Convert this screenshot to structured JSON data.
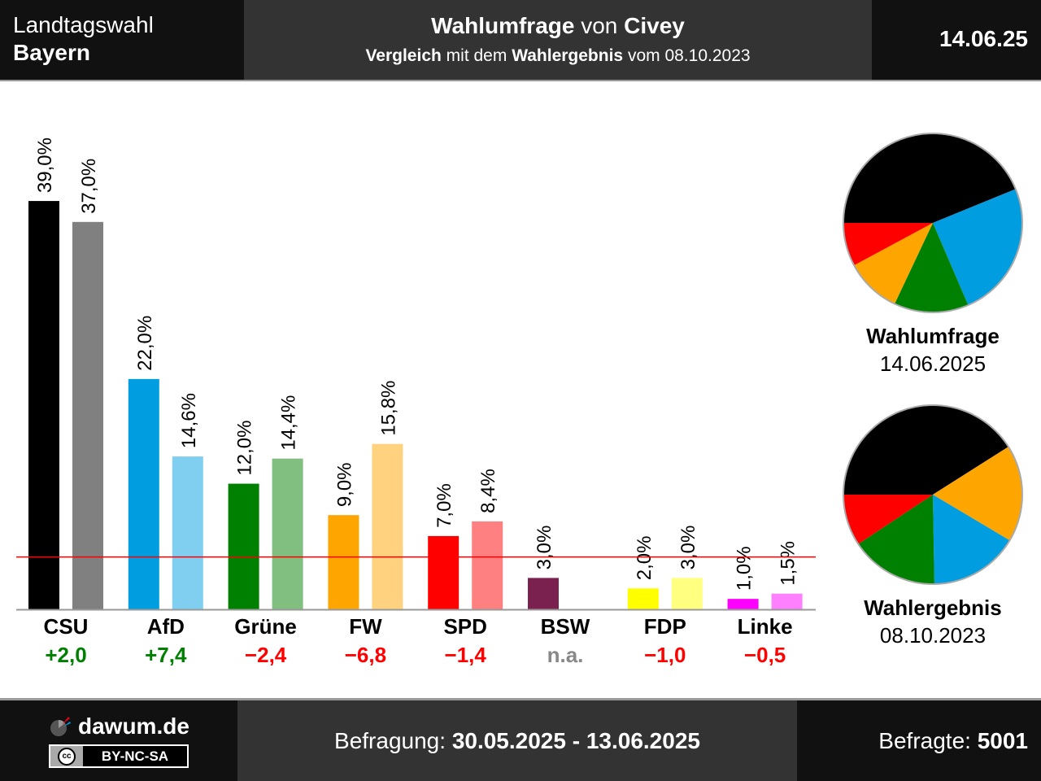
{
  "header": {
    "election_line1": "Landtagswahl",
    "election_line2": "Bayern",
    "title_part1": "Wahlumfrage",
    "title_part2": " von ",
    "title_part3": "Civey",
    "subtitle_part1": "Vergleich",
    "subtitle_part2": " mit dem ",
    "subtitle_part3": "Wahlergebnis",
    "subtitle_part4": " vom 08.10.2023",
    "date": "14.06.25"
  },
  "footer": {
    "site": "dawum.de",
    "license": "BY-NC-SA",
    "license_icon": "cc",
    "period_label": "Befragung: ",
    "period_value": "30.05.2025 - 13.06.2025",
    "respondents_label": "Befragte: ",
    "respondents_value": "5001"
  },
  "chart_data": {
    "type": "bar",
    "categories": [
      "CSU",
      "AfD",
      "Grüne",
      "FW",
      "SPD",
      "BSW",
      "FDP",
      "Linke"
    ],
    "poll": [
      39.0,
      22.0,
      12.0,
      9.0,
      7.0,
      3.0,
      2.0,
      1.0
    ],
    "result": [
      37.0,
      14.6,
      14.4,
      15.8,
      8.4,
      null,
      3.0,
      1.5
    ],
    "poll_labels": [
      "39,0%",
      "22,0%",
      "12,0%",
      "9,0%",
      "7,0%",
      "3,0%",
      "2,0%",
      "1,0%"
    ],
    "result_labels": [
      "37,0%",
      "14,6%",
      "14,4%",
      "15,8%",
      "8,4%",
      "",
      "3,0%",
      "1,5%"
    ],
    "diffs": [
      "+2,0",
      "+7,4",
      "−2,4",
      "−6,8",
      "−1,4",
      "n.a.",
      "−1,0",
      "−0,5"
    ],
    "diff_colors": [
      "#008000",
      "#008000",
      "#ff0000",
      "#ff0000",
      "#ff0000",
      "#888888",
      "#ff0000",
      "#ff0000"
    ],
    "poll_colors": [
      "#000000",
      "#009ee0",
      "#008000",
      "#ffa500",
      "#ff0000",
      "#7a2150",
      "#ffff00",
      "#ff00ff"
    ],
    "result_colors": [
      "#808080",
      "#80cef0",
      "#80bf80",
      "#ffd280",
      "#ff8080",
      "#bd90a8",
      "#ffff80",
      "#ff80ff"
    ],
    "threshold": 5,
    "threshold_color": "#ff0000",
    "pies": [
      {
        "caption_bold": "Wahlumfrage",
        "caption_date": "14.06.2025",
        "slices": [
          {
            "party": "CSU",
            "value": 39.0,
            "color": "#000000"
          },
          {
            "party": "AfD",
            "value": 22.0,
            "color": "#009ee0"
          },
          {
            "party": "Grüne",
            "value": 12.0,
            "color": "#008000"
          },
          {
            "party": "FW",
            "value": 9.0,
            "color": "#ffa500"
          },
          {
            "party": "SPD",
            "value": 7.0,
            "color": "#ff0000"
          }
        ]
      },
      {
        "caption_bold": "Wahlergebnis",
        "caption_date": "08.10.2023",
        "slices": [
          {
            "party": "CSU",
            "value": 37.0,
            "color": "#000000"
          },
          {
            "party": "FW",
            "value": 15.8,
            "color": "#ffa500"
          },
          {
            "party": "AfD",
            "value": 14.6,
            "color": "#009ee0"
          },
          {
            "party": "Grüne",
            "value": 14.4,
            "color": "#008000"
          },
          {
            "party": "SPD",
            "value": 8.4,
            "color": "#ff0000"
          }
        ]
      }
    ]
  }
}
